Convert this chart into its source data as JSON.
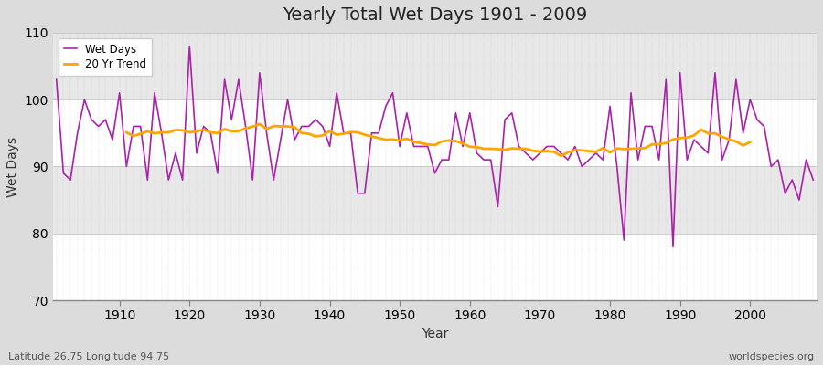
{
  "title": "Yearly Total Wet Days 1901 - 2009",
  "xlabel": "Year",
  "ylabel": "Wet Days",
  "footer_left": "Latitude 26.75 Longitude 94.75",
  "footer_right": "worldspecies.org",
  "ylim": [
    70,
    110
  ],
  "yticks": [
    70,
    80,
    90,
    100,
    110
  ],
  "line_color": "#AA22AA",
  "trend_color": "#FFA500",
  "bg_color": "#DCDCDC",
  "plot_bg_color": "#E8E8E8",
  "years": [
    1901,
    1902,
    1903,
    1904,
    1905,
    1906,
    1907,
    1908,
    1909,
    1910,
    1911,
    1912,
    1913,
    1914,
    1915,
    1916,
    1917,
    1918,
    1919,
    1920,
    1921,
    1922,
    1923,
    1924,
    1925,
    1926,
    1927,
    1928,
    1929,
    1930,
    1931,
    1932,
    1933,
    1934,
    1935,
    1936,
    1937,
    1938,
    1939,
    1940,
    1941,
    1942,
    1943,
    1944,
    1945,
    1946,
    1947,
    1948,
    1949,
    1950,
    1951,
    1952,
    1953,
    1954,
    1955,
    1956,
    1957,
    1958,
    1959,
    1960,
    1961,
    1962,
    1963,
    1964,
    1965,
    1966,
    1967,
    1968,
    1969,
    1970,
    1971,
    1972,
    1973,
    1974,
    1975,
    1976,
    1977,
    1978,
    1979,
    1980,
    1981,
    1982,
    1983,
    1984,
    1985,
    1986,
    1987,
    1988,
    1989,
    1990,
    1991,
    1992,
    1993,
    1994,
    1995,
    1996,
    1997,
    1998,
    1999,
    2000,
    2001,
    2002,
    2003,
    2004,
    2005,
    2006,
    2007,
    2008,
    2009
  ],
  "wet_days": [
    103,
    89,
    88,
    95,
    100,
    97,
    96,
    97,
    94,
    101,
    90,
    96,
    96,
    88,
    101,
    95,
    88,
    92,
    88,
    108,
    92,
    96,
    95,
    89,
    103,
    97,
    103,
    96,
    88,
    104,
    95,
    88,
    94,
    100,
    94,
    96,
    96,
    97,
    96,
    93,
    101,
    95,
    95,
    86,
    86,
    95,
    95,
    99,
    101,
    93,
    98,
    93,
    93,
    93,
    89,
    91,
    91,
    98,
    93,
    98,
    92,
    91,
    91,
    84,
    97,
    98,
    93,
    92,
    91,
    92,
    93,
    93,
    92,
    91,
    93,
    90,
    91,
    92,
    91,
    99,
    90,
    79,
    101,
    91,
    96,
    96,
    91,
    103,
    78,
    104,
    91,
    94,
    93,
    92,
    104,
    91,
    94,
    103,
    95,
    100,
    97,
    96,
    90,
    91,
    86,
    88,
    85,
    91,
    88
  ],
  "legend_labels": [
    "Wet Days",
    "20 Yr Trend"
  ]
}
